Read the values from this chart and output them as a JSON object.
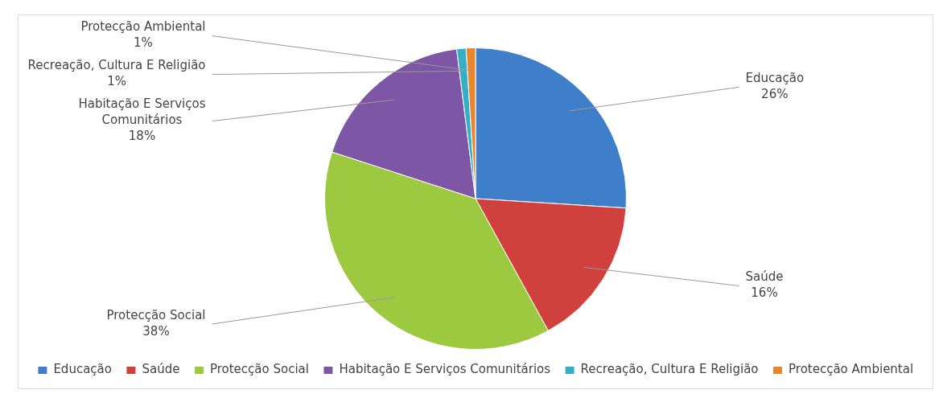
{
  "chart_data": {
    "type": "pie",
    "categories": [
      "Educação",
      "Saúde",
      "Protecção Social",
      "Habitação E Serviços Comunitários",
      "Recreação, Cultura E Religião",
      "Protecção Ambiental"
    ],
    "values": [
      26,
      16,
      38,
      18,
      1,
      1
    ],
    "value_labels": [
      "26%",
      "16%",
      "38%",
      "18%",
      "1%",
      "1%"
    ],
    "colors": [
      "#3f7fc9",
      "#d0403c",
      "#9cc940",
      "#7d56a5",
      "#35aec8",
      "#e8862e"
    ],
    "legend": "bottom"
  }
}
